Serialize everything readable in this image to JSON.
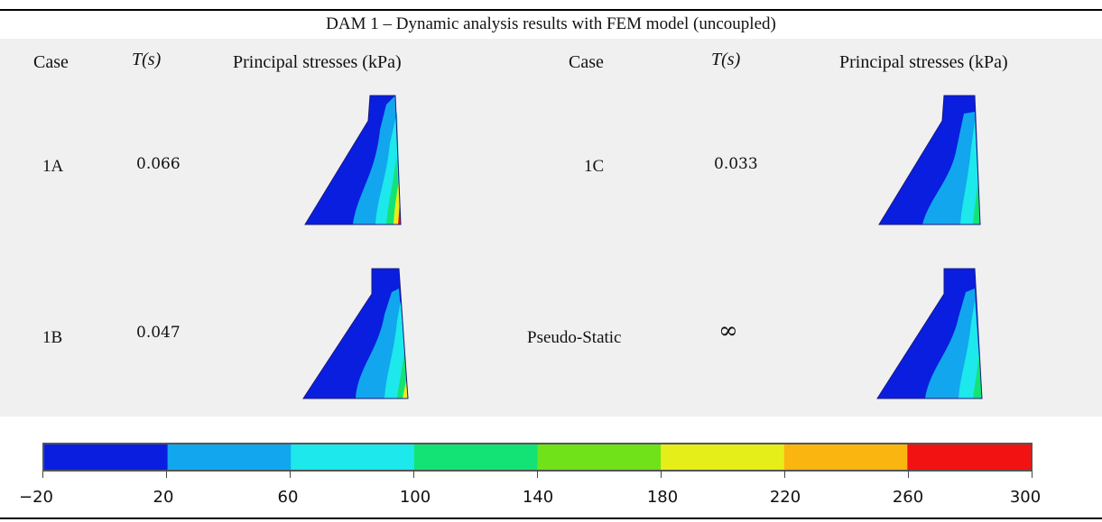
{
  "title": "DAM 1 – Dynamic analysis results with FEM model (uncoupled)",
  "headers": {
    "case": "Case",
    "period": "T(s)",
    "stresses": "Principal stresses (kPa)",
    "case2": "Case",
    "period2": "T(s)",
    "stresses2": "Principal stresses (kPa)"
  },
  "rows": [
    {
      "case": "1A",
      "period": "0.066"
    },
    {
      "case": "1C",
      "period": "0.033"
    },
    {
      "case": "1B",
      "period": "0.047"
    },
    {
      "case": "Pseudo-Static",
      "period": "∞"
    }
  ],
  "colorbar": {
    "ticks": [
      "−20",
      "20",
      "60",
      "100",
      "140",
      "180",
      "220",
      "260",
      "300"
    ],
    "colors": [
      "#0a1ee0",
      "#12a6ee",
      "#1de8ec",
      "#13e374",
      "#6fe21a",
      "#e6ee1a",
      "#fbb510",
      "#f21212"
    ]
  }
}
